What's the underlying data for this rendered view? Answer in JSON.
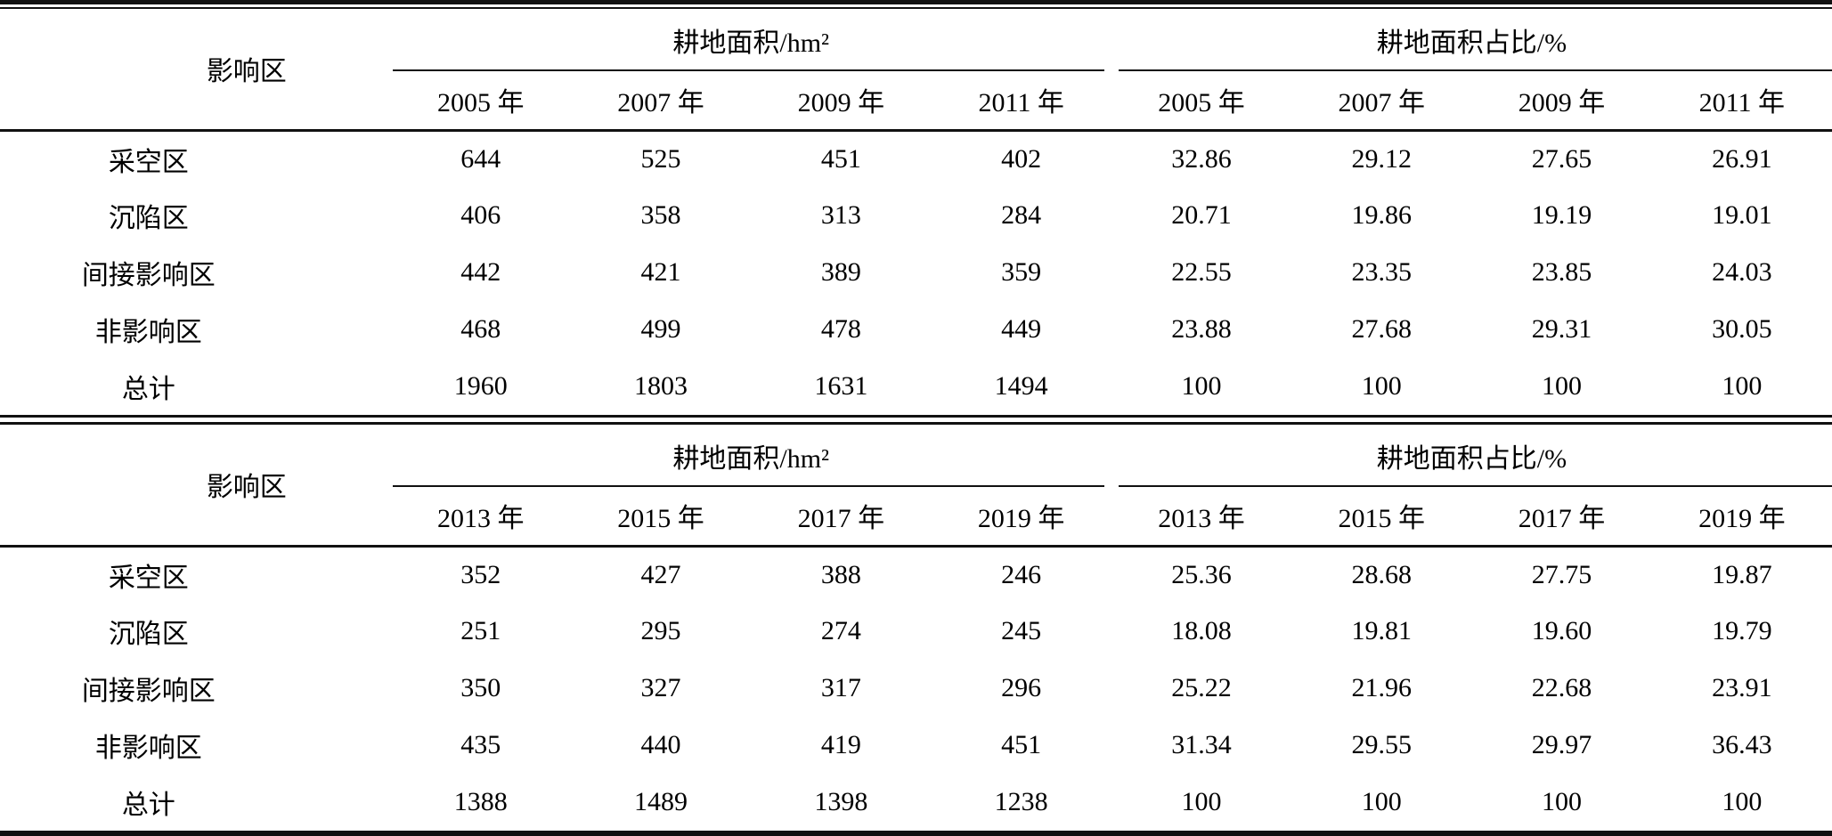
{
  "page": {
    "background": "#ffffff",
    "text_color": "#000000",
    "rule_color": "#111111"
  },
  "tables": [
    {
      "row_header": "影响区",
      "group_area_label": "耕地面积/hm²",
      "group_pct_label": "耕地面积占比/%",
      "years": [
        "2005 年",
        "2007 年",
        "2009 年",
        "2011 年"
      ],
      "rows": [
        {
          "label": "采空区",
          "area": [
            "644",
            "525",
            "451",
            "402"
          ],
          "pct": [
            "32.86",
            "29.12",
            "27.65",
            "26.91"
          ]
        },
        {
          "label": "沉陷区",
          "area": [
            "406",
            "358",
            "313",
            "284"
          ],
          "pct": [
            "20.71",
            "19.86",
            "19.19",
            "19.01"
          ]
        },
        {
          "label": "间接影响区",
          "area": [
            "442",
            "421",
            "389",
            "359"
          ],
          "pct": [
            "22.55",
            "23.35",
            "23.85",
            "24.03"
          ]
        },
        {
          "label": "非影响区",
          "area": [
            "468",
            "499",
            "478",
            "449"
          ],
          "pct": [
            "23.88",
            "27.68",
            "29.31",
            "30.05"
          ]
        },
        {
          "label": "总计",
          "area": [
            "1960",
            "1803",
            "1631",
            "1494"
          ],
          "pct": [
            "100",
            "100",
            "100",
            "100"
          ]
        }
      ]
    },
    {
      "row_header": "影响区",
      "group_area_label": "耕地面积/hm²",
      "group_pct_label": "耕地面积占比/%",
      "years": [
        "2013 年",
        "2015 年",
        "2017 年",
        "2019 年"
      ],
      "rows": [
        {
          "label": "采空区",
          "area": [
            "352",
            "427",
            "388",
            "246"
          ],
          "pct": [
            "25.36",
            "28.68",
            "27.75",
            "19.87"
          ]
        },
        {
          "label": "沉陷区",
          "area": [
            "251",
            "295",
            "274",
            "245"
          ],
          "pct": [
            "18.08",
            "19.81",
            "19.60",
            "19.79"
          ]
        },
        {
          "label": "间接影响区",
          "area": [
            "350",
            "327",
            "317",
            "296"
          ],
          "pct": [
            "25.22",
            "21.96",
            "22.68",
            "23.91"
          ]
        },
        {
          "label": "非影响区",
          "area": [
            "435",
            "440",
            "419",
            "451"
          ],
          "pct": [
            "31.34",
            "29.55",
            "29.97",
            "36.43"
          ]
        },
        {
          "label": "总计",
          "area": [
            "1388",
            "1489",
            "1398",
            "1238"
          ],
          "pct": [
            "100",
            "100",
            "100",
            "100"
          ]
        }
      ]
    }
  ]
}
